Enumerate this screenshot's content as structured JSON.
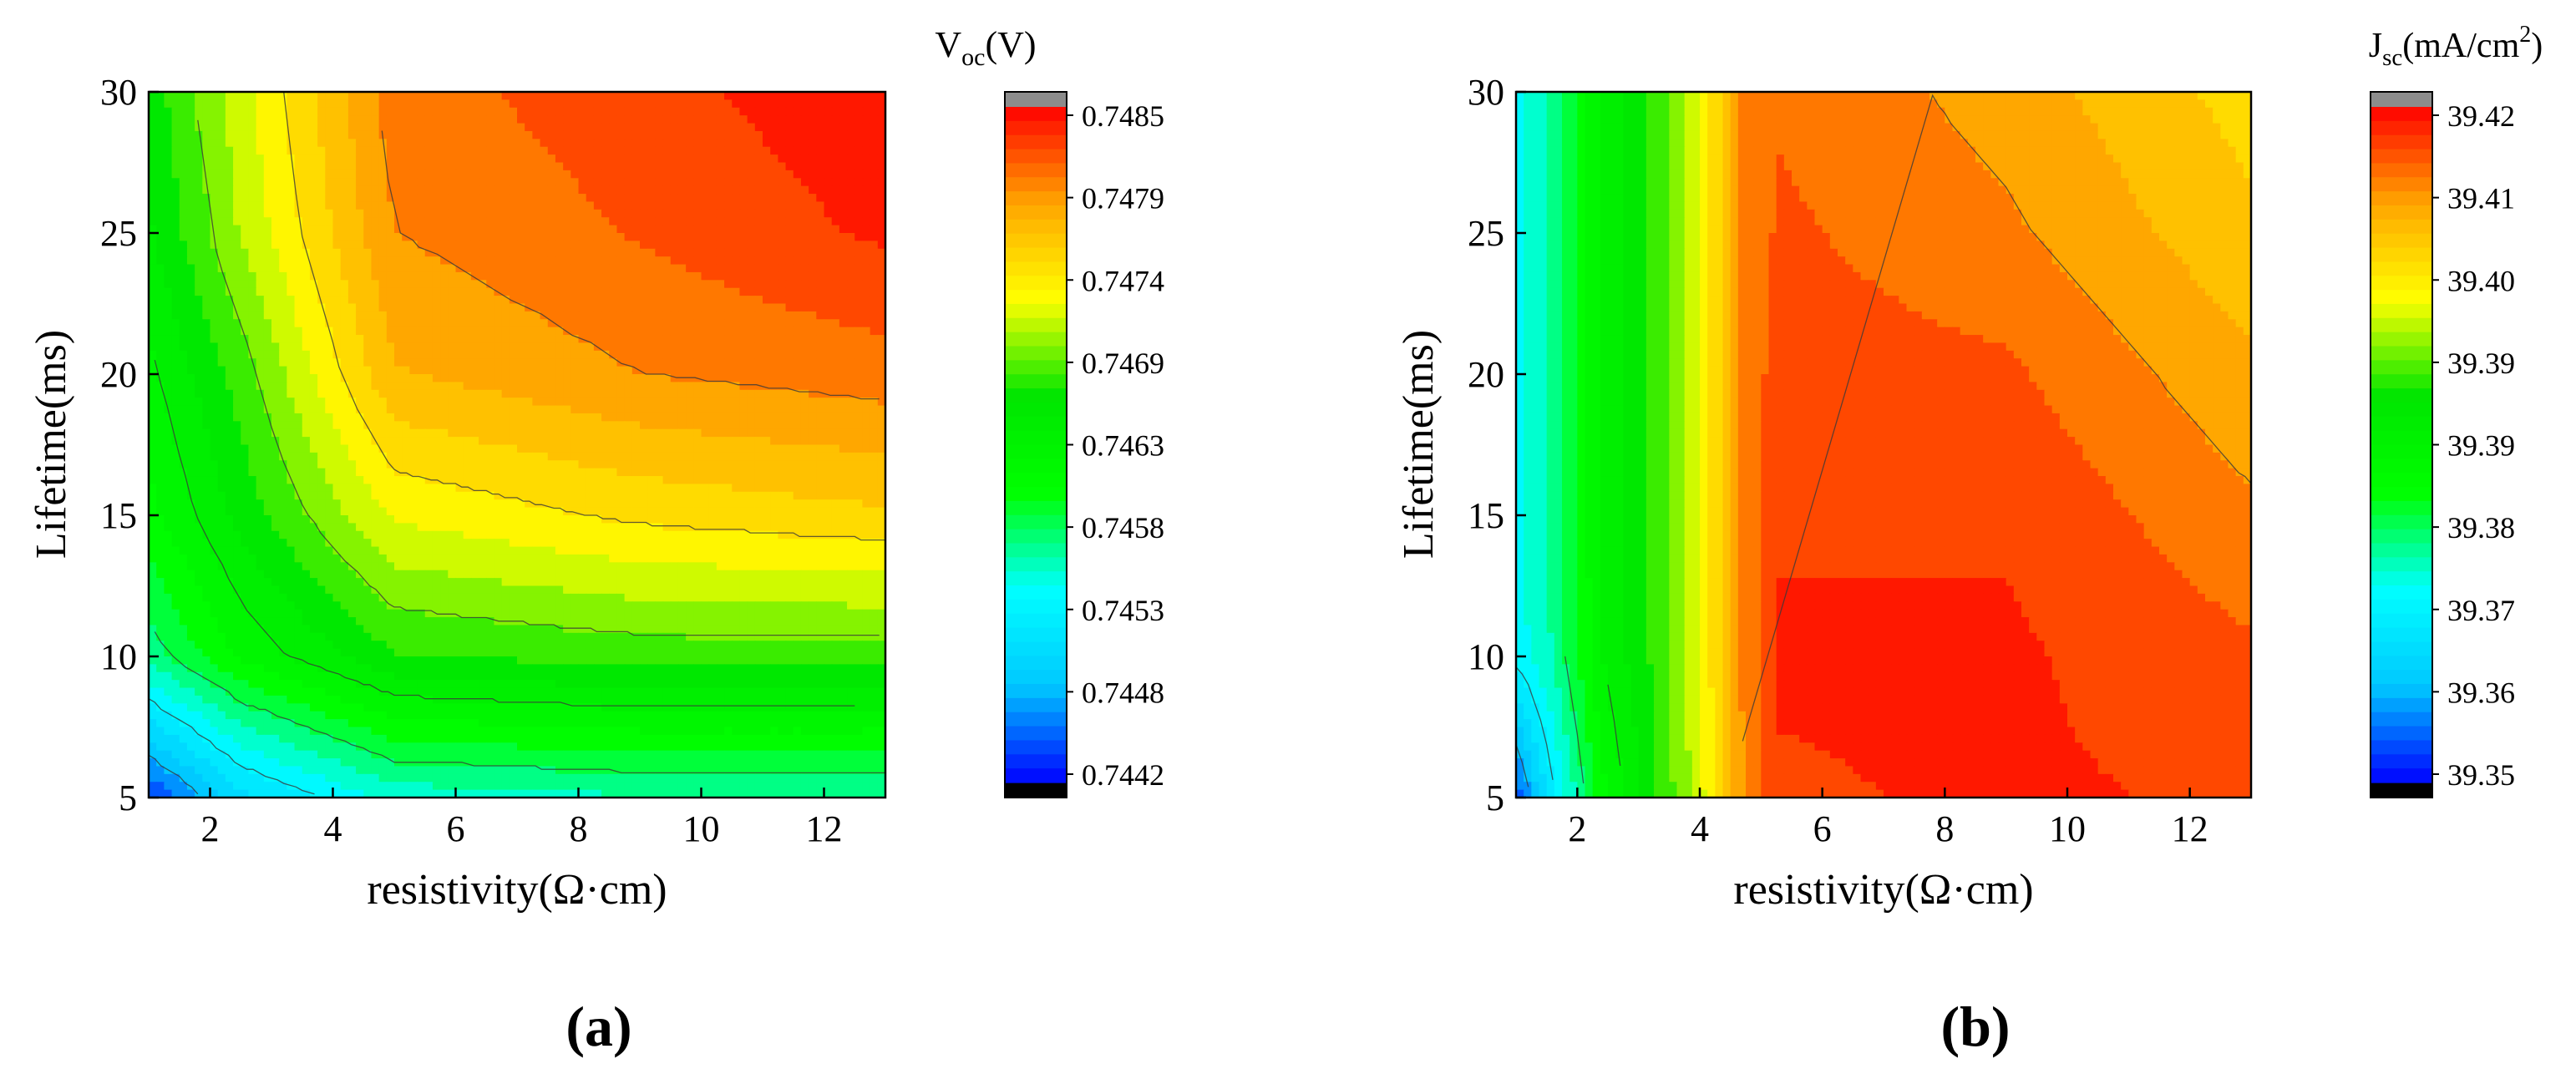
{
  "figure": {
    "panels": [
      {
        "label": "(a)"
      },
      {
        "label": "(b)"
      }
    ]
  },
  "chart_data": [
    {
      "type": "heatmap",
      "subtype": "filled-contour",
      "panel_label": "(a)",
      "xlabel": "resistivity(Ω·cm)",
      "ylabel": "Lifetime(ms)",
      "colorbar_label": {
        "main": "V",
        "sub": "oc",
        "rest": "(V)"
      },
      "xlim": [
        1,
        13
      ],
      "ylim": [
        5,
        30
      ],
      "x_ticks": [
        "2",
        "4",
        "6",
        "8",
        "10",
        "12"
      ],
      "y_ticks": [
        "5",
        "10",
        "15",
        "20",
        "25",
        "30"
      ],
      "x_grid": [
        1,
        2.5,
        5,
        9,
        13
      ],
      "y_grid": [
        5,
        10,
        15,
        20,
        25,
        30
      ],
      "values": [
        [
          0.7443,
          0.745,
          0.7455,
          0.7456,
          0.7456
        ],
        [
          0.7457,
          0.7462,
          0.7467,
          0.7468,
          0.7468
        ],
        [
          0.7461,
          0.7466,
          0.7473,
          0.7475,
          0.7476
        ],
        [
          0.7463,
          0.7468,
          0.7478,
          0.748,
          0.7481
        ],
        [
          0.7465,
          0.7471,
          0.748,
          0.7482,
          0.7484
        ],
        [
          0.7466,
          0.7472,
          0.7481,
          0.7483,
          0.7485
        ]
      ],
      "colorbar_min": 0.74415,
      "colorbar_max": 0.74855,
      "colorbar_ticks": [
        "0.7485",
        "0.7479",
        "0.7474",
        "0.7469",
        "0.7463",
        "0.7458",
        "0.7453",
        "0.7448",
        "0.7442"
      ]
    },
    {
      "type": "heatmap",
      "subtype": "filled-contour",
      "panel_label": "(b)",
      "xlabel": "resistivity(Ω·cm)",
      "ylabel": "Lifetime(ms)",
      "colorbar_label": {
        "main": "J",
        "sub": "sc",
        "rest": "(mA/cm",
        "sup": "2",
        "close": ")"
      },
      "xlim": [
        1,
        13
      ],
      "ylim": [
        5,
        30
      ],
      "x_ticks": [
        "2",
        "4",
        "6",
        "8",
        "10",
        "12"
      ],
      "y_ticks": [
        "5",
        "10",
        "15",
        "20",
        "25",
        "30"
      ],
      "x_grid": [
        1,
        1.6,
        2.4,
        3.3,
        4.0,
        4.7,
        5.3,
        9,
        13
      ],
      "y_grid": [
        5,
        10,
        15,
        20,
        25,
        30
      ],
      "values": [
        [
          39.352,
          39.366,
          39.381,
          39.391,
          39.399,
          39.412,
          39.418,
          39.419,
          39.418
        ],
        [
          39.368,
          39.373,
          39.385,
          39.392,
          39.4,
          39.413,
          39.419,
          39.419,
          39.416
        ],
        [
          39.369,
          39.374,
          39.385,
          39.392,
          39.4,
          39.413,
          39.418,
          39.418,
          39.413
        ],
        [
          39.369,
          39.374,
          39.385,
          39.392,
          39.4,
          39.413,
          39.417,
          39.416,
          39.41
        ],
        [
          39.369,
          39.374,
          39.385,
          39.392,
          39.4,
          39.413,
          39.416,
          39.413,
          39.407
        ],
        [
          39.369,
          39.374,
          39.385,
          39.392,
          39.4,
          39.413,
          39.415,
          39.411,
          39.405
        ]
      ],
      "colorbar_min": 39.3485,
      "colorbar_max": 39.4215,
      "colorbar_ticks": [
        "39.42",
        "39.41",
        "39.40",
        "39.39",
        "39.39",
        "39.38",
        "39.37",
        "39.36",
        "39.35"
      ]
    }
  ],
  "colors": {
    "colormap": [
      "#0000ff",
      "#00c8ff",
      "#00ffff",
      "#00ff00",
      "#00e600",
      "#ffff00",
      "#ffa500",
      "#ff0000"
    ],
    "over": "#8c8c8c",
    "under": "#000000",
    "contour_line": "#3a3a3a",
    "axis": "#000000"
  }
}
